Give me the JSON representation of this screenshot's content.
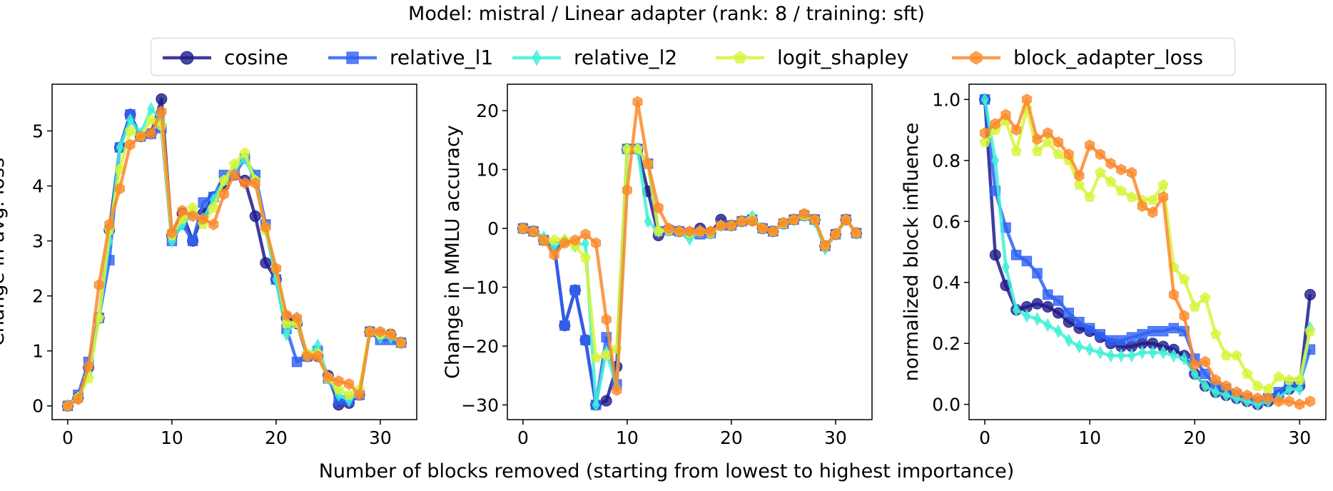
{
  "figure": {
    "title": "Model: mistral / Linear adapter (rank: 8 / training: sft)",
    "xlabel": "Number of blocks removed (starting from lowest to highest importance)"
  },
  "legend": {
    "placement": "top-center",
    "items": [
      {
        "label": "cosine",
        "color": "#1e1a8c",
        "marker": "circle"
      },
      {
        "label": "relative_l1",
        "color": "#2f62f5",
        "marker": "square"
      },
      {
        "label": "relative_l2",
        "color": "#3ff0d6",
        "marker": "diamond"
      },
      {
        "label": "logit_shapley",
        "color": "#d7f53a",
        "marker": "pentagon"
      },
      {
        "label": "block_adapter_loss",
        "color": "#fb8a2b",
        "marker": "hexagon"
      }
    ]
  },
  "chart_data": [
    {
      "type": "line",
      "ylabel": "Change in avg. loss",
      "xlim": [
        -1.5,
        33.5
      ],
      "ylim": [
        -0.25,
        5.85
      ],
      "xticks": [
        0,
        10,
        20,
        30
      ],
      "yticks": [
        0,
        1,
        2,
        3,
        4,
        5
      ],
      "grid": false,
      "series": [
        {
          "name": "cosine",
          "x": [
            0,
            1,
            2,
            3,
            4,
            5,
            6,
            7,
            8,
            9,
            10,
            11,
            12,
            13,
            14,
            15,
            16,
            17,
            18,
            19,
            20,
            21,
            22,
            23,
            24,
            25,
            26,
            27,
            28,
            29,
            30,
            31,
            32
          ],
          "values": [
            0,
            0.15,
            0.7,
            1.6,
            3.2,
            4.7,
            5.3,
            4.9,
            4.95,
            5.58,
            3.1,
            3.5,
            3.0,
            3.5,
            3.8,
            4.0,
            4.2,
            4.1,
            3.45,
            2.6,
            2.3,
            1.6,
            1.5,
            0.9,
            0.9,
            0.55,
            0.02,
            0.05,
            0.2,
            1.35,
            1.3,
            1.3,
            1.15
          ]
        },
        {
          "name": "relative_l1",
          "x": [
            0,
            1,
            2,
            3,
            4,
            5,
            6,
            7,
            8,
            9,
            10,
            11,
            12,
            13,
            14,
            15,
            16,
            17,
            18,
            19,
            20,
            21,
            22,
            23,
            24,
            25,
            26,
            27,
            28,
            29,
            30,
            31,
            32
          ],
          "values": [
            0,
            0.2,
            0.8,
            1.6,
            2.65,
            4.7,
            5.3,
            4.9,
            4.95,
            5.05,
            3.0,
            3.3,
            3.0,
            3.7,
            3.8,
            4.2,
            4.2,
            4.5,
            4.2,
            3.3,
            2.3,
            1.4,
            0.8,
            0.9,
            1.0,
            0.5,
            0.1,
            0.1,
            0.2,
            1.35,
            1.2,
            1.2,
            1.15
          ]
        },
        {
          "name": "relative_l2",
          "x": [
            0,
            1,
            2,
            3,
            4,
            5,
            6,
            7,
            8,
            9,
            10,
            11,
            12,
            13,
            14,
            15,
            16,
            17,
            18,
            19,
            20,
            21,
            22,
            23,
            24,
            25,
            26,
            27,
            28,
            29,
            30,
            31,
            32
          ],
          "values": [
            0,
            0.15,
            0.6,
            1.6,
            3.0,
            4.7,
            5.2,
            4.95,
            5.4,
            5.2,
            3.0,
            3.3,
            3.5,
            3.4,
            3.75,
            4.1,
            4.3,
            4.5,
            4.1,
            3.2,
            2.3,
            1.3,
            1.6,
            0.9,
            1.1,
            0.5,
            0.2,
            0.1,
            0.25,
            1.35,
            1.25,
            1.25,
            1.15
          ]
        },
        {
          "name": "logit_shapley",
          "x": [
            0,
            1,
            2,
            3,
            4,
            5,
            6,
            7,
            8,
            9,
            10,
            11,
            12,
            13,
            14,
            15,
            16,
            17,
            18,
            19,
            20,
            21,
            22,
            23,
            24,
            25,
            26,
            27,
            28,
            29,
            30,
            31,
            32
          ],
          "values": [
            0,
            0.15,
            0.5,
            1.6,
            3.2,
            4.3,
            5.0,
            4.9,
            5.2,
            5.1,
            3.1,
            3.4,
            3.6,
            3.3,
            3.6,
            4.1,
            4.4,
            4.6,
            4.1,
            3.2,
            2.5,
            1.5,
            1.5,
            0.95,
            0.95,
            0.5,
            0.3,
            0.2,
            0.3,
            1.35,
            1.3,
            1.3,
            1.15
          ]
        },
        {
          "name": "block_adapter_loss",
          "x": [
            0,
            1,
            2,
            3,
            4,
            5,
            6,
            7,
            8,
            9,
            10,
            11,
            12,
            13,
            14,
            15,
            16,
            17,
            18,
            19,
            20,
            21,
            22,
            23,
            24,
            25,
            26,
            27,
            28,
            29,
            30,
            31,
            32
          ],
          "values": [
            0,
            0.12,
            0.72,
            2.2,
            3.3,
            3.95,
            4.75,
            4.9,
            4.95,
            5.35,
            3.15,
            3.55,
            3.45,
            3.4,
            3.3,
            3.85,
            4.2,
            4.05,
            4.05,
            3.25,
            2.5,
            1.65,
            1.6,
            0.9,
            0.9,
            0.52,
            0.45,
            0.4,
            0.2,
            1.35,
            1.35,
            1.3,
            1.15
          ]
        }
      ]
    },
    {
      "type": "line",
      "ylabel": "Change in MMLU accuracy",
      "xlim": [
        -1.5,
        33.5
      ],
      "ylim": [
        -32.5,
        24.5
      ],
      "xticks": [
        0,
        10,
        20,
        30
      ],
      "yticks": [
        -30,
        -20,
        -10,
        0,
        10,
        20
      ],
      "grid": false,
      "series": [
        {
          "name": "cosine",
          "x": [
            0,
            1,
            2,
            3,
            4,
            5,
            6,
            7,
            8,
            9,
            10,
            11,
            12,
            13,
            14,
            15,
            16,
            17,
            18,
            19,
            20,
            21,
            22,
            23,
            24,
            25,
            26,
            27,
            28,
            29,
            30,
            31,
            32
          ],
          "values": [
            0,
            -0.5,
            -2,
            -3,
            -16.5,
            -10.5,
            -19,
            -30,
            -29.3,
            -23.5,
            13.5,
            13.5,
            6.3,
            -1.2,
            -0.3,
            -0.5,
            -0.8,
            0,
            -0.8,
            1.5,
            0.5,
            1.2,
            1.5,
            0,
            -0.5,
            0.8,
            1.5,
            2.2,
            1.5,
            -3,
            -1,
            1.5,
            -0.8
          ]
        },
        {
          "name": "relative_l1",
          "x": [
            0,
            1,
            2,
            3,
            4,
            5,
            6,
            7,
            8,
            9,
            10,
            11,
            12,
            13,
            14,
            15,
            16,
            17,
            18,
            19,
            20,
            21,
            22,
            23,
            24,
            25,
            26,
            27,
            28,
            29,
            30,
            31,
            32
          ],
          "values": [
            0,
            -0.5,
            -2,
            -3,
            -16.5,
            -10.5,
            -19,
            -30,
            -18.5,
            -26.5,
            13.5,
            13.5,
            11,
            -0.5,
            -0.3,
            -0.5,
            -0.8,
            -1,
            -0.8,
            0.5,
            0.5,
            1.2,
            1.5,
            0,
            -0.5,
            0.8,
            1.5,
            2.2,
            1.5,
            -3,
            -1,
            1.5,
            -0.8
          ]
        },
        {
          "name": "relative_l2",
          "x": [
            0,
            1,
            2,
            3,
            4,
            5,
            6,
            7,
            8,
            9,
            10,
            11,
            12,
            13,
            14,
            15,
            16,
            17,
            18,
            19,
            20,
            21,
            22,
            23,
            24,
            25,
            26,
            27,
            28,
            29,
            30,
            31,
            32
          ],
          "values": [
            0,
            -0.5,
            -1.5,
            -3,
            -2,
            -3,
            -2.5,
            -30,
            -21,
            -27,
            13.5,
            13.5,
            1.2,
            -0.5,
            -0.3,
            -0.5,
            -1.8,
            -0.5,
            -0.8,
            0.5,
            0.5,
            1.2,
            2,
            0,
            -0.5,
            0.8,
            1.5,
            2.2,
            1.2,
            -3.5,
            -1,
            1.5,
            -0.8
          ]
        },
        {
          "name": "logit_shapley",
          "x": [
            0,
            1,
            2,
            3,
            4,
            5,
            6,
            7,
            8,
            9,
            10,
            11,
            12,
            13,
            14,
            15,
            16,
            17,
            18,
            19,
            20,
            21,
            22,
            23,
            24,
            25,
            26,
            27,
            28,
            29,
            30,
            31,
            32
          ],
          "values": [
            0,
            -0.5,
            -2,
            -2,
            -2,
            -3,
            -5,
            -22,
            -21.5,
            -20.5,
            13.5,
            13.5,
            11,
            -0.5,
            -0.3,
            -0.5,
            -0.8,
            -0.5,
            -0.8,
            0.5,
            0.5,
            1.2,
            1.5,
            0,
            -0.5,
            0.8,
            1.5,
            2.2,
            1.5,
            -3,
            -1,
            1.5,
            -0.8
          ]
        },
        {
          "name": "block_adapter_loss",
          "x": [
            0,
            1,
            2,
            3,
            4,
            5,
            6,
            7,
            8,
            9,
            10,
            11,
            12,
            13,
            14,
            15,
            16,
            17,
            18,
            19,
            20,
            21,
            22,
            23,
            24,
            25,
            26,
            27,
            28,
            29,
            30,
            31,
            32
          ],
          "values": [
            0,
            -0.5,
            -2,
            -4.5,
            -2.5,
            -2,
            -1,
            -2.5,
            -15.5,
            -27.5,
            6.5,
            21.5,
            11,
            3.5,
            0,
            -0.5,
            -0.5,
            -0.5,
            -0.5,
            0.5,
            0.5,
            1.2,
            1.2,
            0,
            -0.5,
            1,
            1.5,
            2.5,
            1.5,
            -3,
            -1,
            1.5,
            -0.8
          ]
        }
      ]
    },
    {
      "type": "line",
      "ylabel": "normalized block influence",
      "xlim": [
        -1.5,
        32.5
      ],
      "ylim": [
        -0.05,
        1.05
      ],
      "xticks": [
        0,
        10,
        20,
        30
      ],
      "yticks": [
        0.0,
        0.2,
        0.4,
        0.6,
        0.8,
        1.0
      ],
      "grid": false,
      "series": [
        {
          "name": "cosine",
          "x": [
            0,
            1,
            2,
            3,
            4,
            5,
            6,
            7,
            8,
            9,
            10,
            11,
            12,
            13,
            14,
            15,
            16,
            17,
            18,
            19,
            20,
            21,
            22,
            23,
            24,
            25,
            26,
            27,
            28,
            29,
            30,
            31
          ],
          "values": [
            1.0,
            0.49,
            0.39,
            0.31,
            0.32,
            0.33,
            0.32,
            0.3,
            0.27,
            0.25,
            0.24,
            0.22,
            0.2,
            0.19,
            0.19,
            0.2,
            0.2,
            0.19,
            0.18,
            0.16,
            0.1,
            0.06,
            0.04,
            0.03,
            0.02,
            0.01,
            0.0,
            0.01,
            0.03,
            0.05,
            0.06,
            0.36
          ]
        },
        {
          "name": "relative_l1",
          "x": [
            0,
            1,
            2,
            3,
            4,
            5,
            6,
            7,
            8,
            9,
            10,
            11,
            12,
            13,
            14,
            15,
            16,
            17,
            18,
            19,
            20,
            21,
            22,
            23,
            24,
            25,
            26,
            27,
            28,
            29,
            30,
            31
          ],
          "values": [
            1.0,
            0.7,
            0.58,
            0.49,
            0.47,
            0.43,
            0.36,
            0.34,
            0.3,
            0.27,
            0.25,
            0.23,
            0.21,
            0.21,
            0.22,
            0.23,
            0.24,
            0.24,
            0.25,
            0.24,
            0.15,
            0.1,
            0.06,
            0.05,
            0.03,
            0.02,
            0.01,
            0.02,
            0.04,
            0.07,
            0.07,
            0.18
          ]
        },
        {
          "name": "relative_l2",
          "x": [
            0,
            1,
            2,
            3,
            4,
            5,
            6,
            7,
            8,
            9,
            10,
            11,
            12,
            13,
            14,
            15,
            16,
            17,
            18,
            19,
            20,
            21,
            22,
            23,
            24,
            25,
            26,
            27,
            28,
            29,
            30,
            31
          ],
          "values": [
            1.0,
            0.8,
            0.45,
            0.31,
            0.29,
            0.28,
            0.26,
            0.24,
            0.21,
            0.19,
            0.18,
            0.17,
            0.16,
            0.16,
            0.16,
            0.17,
            0.17,
            0.17,
            0.16,
            0.15,
            0.1,
            0.06,
            0.04,
            0.03,
            0.02,
            0.01,
            0.0,
            0.01,
            0.02,
            0.05,
            0.05,
            0.25
          ]
        },
        {
          "name": "logit_shapley",
          "x": [
            0,
            1,
            2,
            3,
            4,
            5,
            6,
            7,
            8,
            9,
            10,
            11,
            12,
            13,
            14,
            15,
            16,
            17,
            18,
            19,
            20,
            21,
            22,
            23,
            24,
            25,
            26,
            27,
            28,
            29,
            30,
            31
          ],
          "values": [
            0.86,
            0.9,
            0.93,
            0.83,
            0.97,
            0.83,
            0.86,
            0.82,
            0.8,
            0.72,
            0.68,
            0.76,
            0.73,
            0.7,
            0.68,
            0.67,
            0.67,
            0.72,
            0.45,
            0.41,
            0.32,
            0.35,
            0.23,
            0.16,
            0.16,
            0.1,
            0.06,
            0.05,
            0.09,
            0.08,
            0.08,
            0.24
          ]
        },
        {
          "name": "block_adapter_loss",
          "x": [
            0,
            1,
            2,
            3,
            4,
            5,
            6,
            7,
            8,
            9,
            10,
            11,
            12,
            13,
            14,
            15,
            16,
            17,
            18,
            19,
            20,
            21,
            22,
            23,
            24,
            25,
            26,
            27,
            28,
            29,
            30,
            31
          ],
          "values": [
            0.89,
            0.92,
            0.95,
            0.9,
            1.0,
            0.87,
            0.89,
            0.86,
            0.82,
            0.75,
            0.85,
            0.82,
            0.79,
            0.77,
            0.76,
            0.65,
            0.63,
            0.68,
            0.36,
            0.29,
            0.13,
            0.14,
            0.08,
            0.06,
            0.04,
            0.03,
            0.02,
            0.02,
            0.01,
            0.01,
            0.0,
            0.01
          ]
        }
      ]
    }
  ]
}
